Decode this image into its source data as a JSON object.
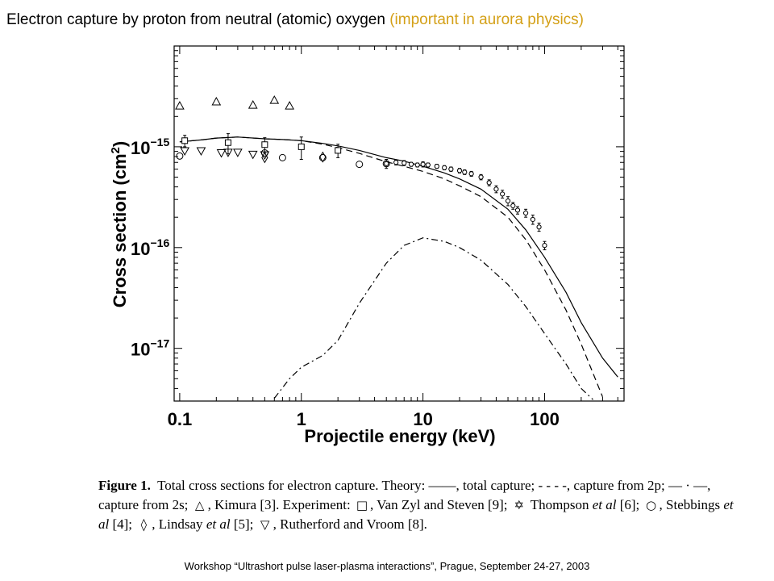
{
  "title": {
    "main": "Electron capture by proton from neutral (atomic) oxygen",
    "accent": "(important in aurora physics)",
    "accent_color": "#d4a017"
  },
  "chart_data": {
    "type": "line",
    "xlabel": "Projectile energy (keV)",
    "ylabel": "Cross section (cm",
    "ylabel_sup": "2",
    "ylabel_close": ")",
    "x_scale": "log",
    "y_scale": "log",
    "xlim": [
      0.09,
      450
    ],
    "ylim": [
      3e-18,
      1e-14
    ],
    "xticks": [
      {
        "value": 0.1,
        "label": "0.1"
      },
      {
        "value": 1,
        "label": "1"
      },
      {
        "value": 10,
        "label": "10"
      },
      {
        "value": 100,
        "label": "100"
      }
    ],
    "yticks": [
      {
        "value": 1e-15,
        "base": "10",
        "exp": "−15"
      },
      {
        "value": 1e-16,
        "base": "10",
        "exp": "−16"
      },
      {
        "value": 1e-17,
        "base": "10",
        "exp": "−17"
      }
    ],
    "series": [
      {
        "style": "solid",
        "x": [
          0.1,
          0.15,
          0.2,
          0.3,
          0.5,
          0.7,
          1,
          1.5,
          2,
          3,
          5,
          7,
          10,
          15,
          20,
          30,
          50,
          70,
          100,
          150,
          200,
          300,
          400
        ],
        "y": [
          1.12e-15,
          1.17e-15,
          1.22e-15,
          1.25e-15,
          1.2e-15,
          1.18e-15,
          1.15e-15,
          1.08e-15,
          1.02e-15,
          9.2e-16,
          7.8e-16,
          7.2e-16,
          6.4e-16,
          5.5e-16,
          4.8e-16,
          3.8e-16,
          2.4e-16,
          1.5e-16,
          8e-17,
          3.6e-17,
          1.8e-17,
          8e-18,
          5.2e-18
        ]
      },
      {
        "style": "dashed",
        "x": [
          0.1,
          0.15,
          0.2,
          0.3,
          0.5,
          0.7,
          1,
          1.5,
          2,
          3,
          5,
          7,
          10,
          15,
          20,
          30,
          50,
          70,
          100,
          150,
          200,
          300
        ],
        "y": [
          1.12e-15,
          1.17e-15,
          1.22e-15,
          1.25e-15,
          1.2e-15,
          1.18e-15,
          1.15e-15,
          1.06e-15,
          9.8e-16,
          8.6e-16,
          7.1e-16,
          6.4e-16,
          5.7e-16,
          4.8e-16,
          4.1e-16,
          3.2e-16,
          2e-16,
          1.2e-16,
          6e-17,
          2.4e-17,
          1.1e-17,
          3.3e-18
        ]
      },
      {
        "style": "dashdot",
        "x": [
          0.6,
          0.8,
          1,
          1.5,
          2,
          3,
          5,
          7,
          10,
          15,
          20,
          30,
          50,
          70,
          100,
          150,
          200,
          250
        ],
        "y": [
          3.2e-18,
          5e-18,
          6.5e-18,
          8.5e-18,
          1.2e-17,
          2.8e-17,
          7e-17,
          1.05e-16,
          1.25e-16,
          1.15e-16,
          1e-16,
          7.5e-17,
          4.3e-17,
          2.6e-17,
          1.4e-17,
          7e-18,
          4e-18,
          3.1e-18
        ]
      }
    ],
    "markers": {
      "triangle_up": {
        "x": [
          0.1,
          0.2,
          0.4,
          0.6,
          0.8
        ],
        "y": [
          2.55e-15,
          2.8e-15,
          2.6e-15,
          2.9e-15,
          2.55e-15
        ]
      },
      "square": {
        "x": [
          0.11,
          0.25,
          0.5,
          1,
          2
        ],
        "y": [
          1.15e-15,
          1.1e-15,
          1.05e-15,
          1e-15,
          9.2e-16
        ],
        "err": [
          1.5e-16,
          2.5e-16,
          1.8e-16,
          2.5e-16,
          1.4e-16
        ]
      },
      "triangle_down": {
        "x": [
          0.11,
          0.15,
          0.22,
          0.25,
          0.3,
          0.4,
          0.5
        ],
        "y": [
          9.1e-16,
          9.1e-16,
          8.7e-16,
          8.8e-16,
          8.8e-16,
          8.4e-16,
          8.3e-16
        ]
      },
      "circle": {
        "x": [
          0.1,
          0.5,
          0.7,
          1.5,
          3,
          5
        ],
        "y": [
          8.1e-16,
          8.7e-16,
          7.8e-16,
          7.8e-16,
          6.7e-16,
          6.8e-16
        ]
      },
      "diamond": {
        "x": [
          0.5,
          1.5
        ],
        "y": [
          7.8e-16,
          7.9e-16
        ]
      },
      "star": {
        "x": [
          5,
          6,
          7,
          8,
          9,
          10,
          11,
          13,
          15,
          17,
          20,
          22,
          25,
          30,
          35,
          40,
          45,
          50,
          55,
          60,
          70,
          80,
          90,
          100
        ],
        "y": [
          6.8e-16,
          7e-16,
          6.9e-16,
          6.7e-16,
          6.6e-16,
          6.7e-16,
          6.6e-16,
          6.4e-16,
          6.2e-16,
          6e-16,
          5.8e-16,
          5.6e-16,
          5.4e-16,
          5e-16,
          4.4e-16,
          3.8e-16,
          3.4e-16,
          2.9e-16,
          2.6e-16,
          2.35e-16,
          2.2e-16,
          1.9e-16,
          1.6e-16,
          1.05e-16
        ],
        "err": [
          7e-17,
          4e-17,
          4e-17,
          3e-17,
          3e-17,
          4e-17,
          3e-17,
          3e-17,
          3e-17,
          3e-17,
          3e-17,
          3e-17,
          3e-17,
          3e-17,
          3e-17,
          3e-17,
          3e-17,
          3e-17,
          2e-17,
          2e-17,
          2e-17,
          2e-17,
          1.5e-17,
          1e-17
        ]
      }
    }
  },
  "caption": {
    "figure_label": "Figure 1.",
    "part1": "Total cross sections for electron capture.  Theory:  ——, total capture; - - - -, capture from 2p; — · —, capture from 2s;",
    "kimura": ", Kimura [3].  Experiment:",
    "vanzyl": ", Van Zyl and Steven [9];",
    "thompson": "Thompson",
    "etal1": "et al",
    "thompson_ref": "[6];",
    "stebbings": ", Stebbings",
    "etal2": "et al",
    "stebbings_ref": "[4];",
    "lindsay": ", Lindsay",
    "etal3": "et al",
    "lindsay_ref": "[5];",
    "rutherford": ", Rutherford and Vroom [8].",
    "sym_triangle": "△",
    "sym_square": "□",
    "sym_star": "✡",
    "sym_circle": "○",
    "sym_diamond": "◊",
    "sym_triangle_down": "▽"
  },
  "footer": "Workshop “Ultrashort pulse laser-plasma interactions”, Prague, September 24-27, 2003"
}
